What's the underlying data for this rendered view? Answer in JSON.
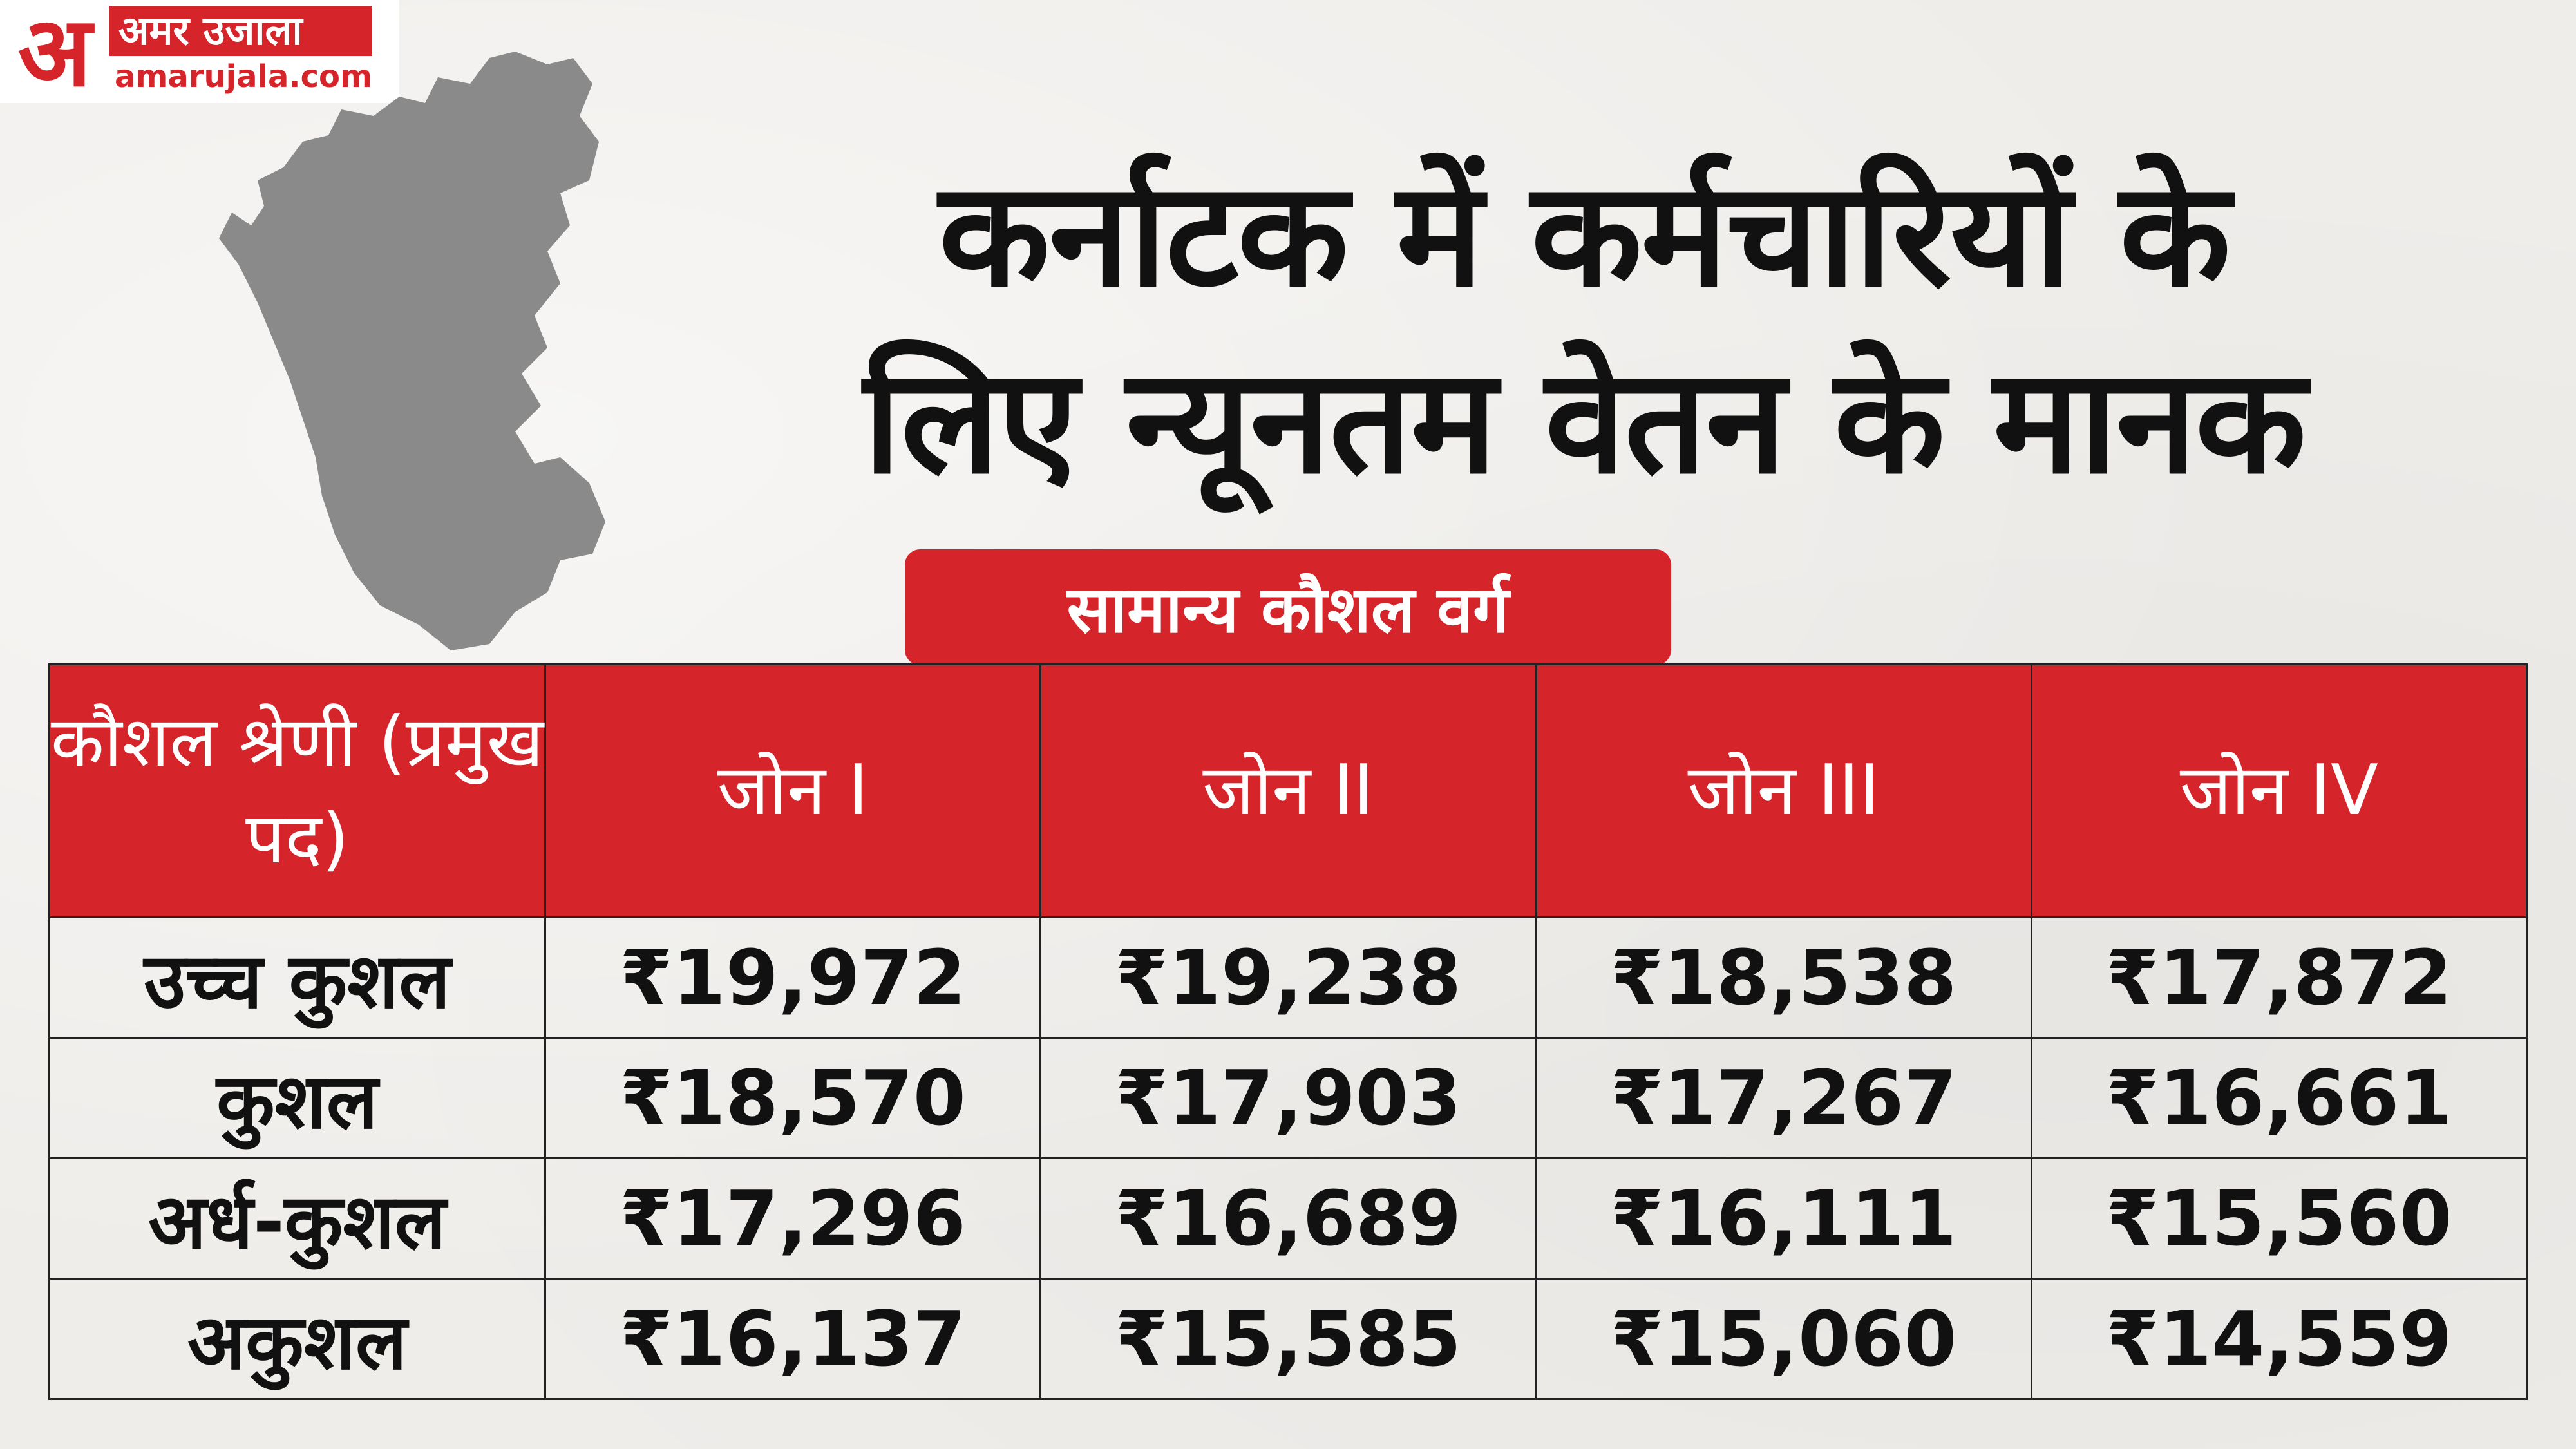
{
  "logo": {
    "mark": "अ",
    "name": "अमर उजाला",
    "domain": "amarujala.com"
  },
  "map": {
    "icon": "karnataka-map",
    "fill": "#8a8a8a"
  },
  "title": {
    "line1": "कर्नाटक में कर्मचारियों के",
    "line2": "लिए न्यूनतम वेतन के मानक"
  },
  "category_label": "सामान्य कौशल वर्ग",
  "colors": {
    "accent": "#d6242b",
    "text": "#111111",
    "background": "#efedea"
  },
  "table": {
    "headers": [
      "कौशल श्रेणी (प्रमुख पद)",
      "जोन I",
      "जोन II",
      "जोन III",
      "जोन IV"
    ],
    "rows": [
      {
        "label": "उच्च कुशल",
        "values": [
          "₹19,972",
          "₹19,238",
          "₹18,538",
          "₹17,872"
        ]
      },
      {
        "label": "कुशल",
        "values": [
          "₹18,570",
          "₹17,903",
          "₹17,267",
          "₹16,661"
        ]
      },
      {
        "label": "अर्ध-कुशल",
        "values": [
          "₹17,296",
          "₹16,689",
          "₹16,111",
          "₹15,560"
        ]
      },
      {
        "label": "अकुशल",
        "values": [
          "₹16,137",
          "₹15,585",
          "₹15,060",
          "₹14,559"
        ]
      }
    ]
  }
}
